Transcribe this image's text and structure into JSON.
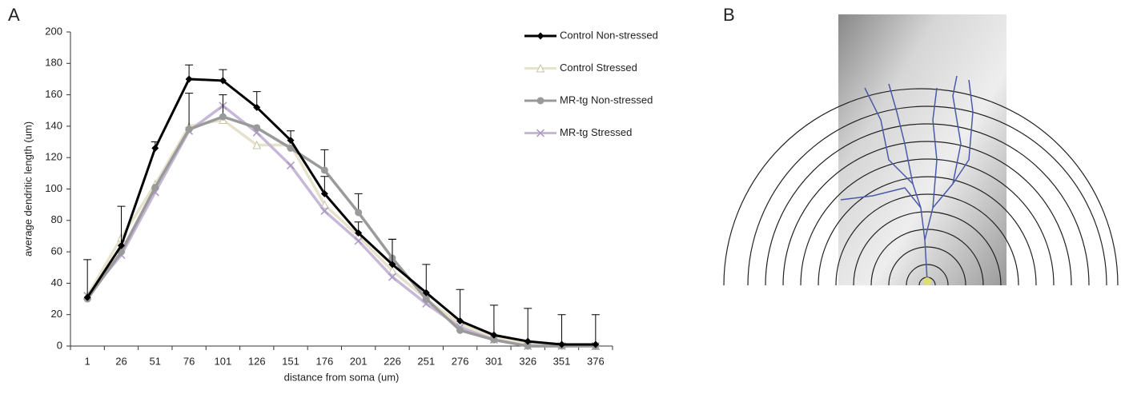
{
  "panels": [
    "A",
    "B"
  ],
  "chart_data": {
    "type": "line",
    "xlabel": "distance from soma (um)",
    "ylabel": "average dendritic length (um)",
    "categories": [
      "1",
      "26",
      "51",
      "76",
      "101",
      "126",
      "151",
      "176",
      "201",
      "226",
      "251",
      "276",
      "301",
      "326",
      "351",
      "376"
    ],
    "ylim": [
      0,
      200
    ],
    "yticks": [
      0,
      20,
      40,
      60,
      80,
      100,
      120,
      140,
      160,
      180,
      200
    ],
    "legend": "right",
    "series": [
      {
        "name": "Control Non-stressed",
        "color": "#000000",
        "marker": "diamond",
        "values": [
          31,
          64,
          126,
          170,
          169,
          152,
          131,
          97,
          72,
          52,
          34,
          16,
          7,
          3,
          1,
          1
        ],
        "errors": [
          24,
          25,
          4,
          9,
          7,
          10,
          6,
          11,
          7,
          16,
          18,
          20,
          19,
          21,
          19,
          19
        ]
      },
      {
        "name": "Control Stressed",
        "color": "#e6e2cc",
        "marker": "triangle",
        "values": [
          32,
          69,
          103,
          140,
          144,
          128,
          128,
          90,
          70,
          48,
          30,
          14,
          6,
          2,
          1,
          0
        ]
      },
      {
        "name": "MR-tg Non-stressed",
        "color": "#9a9a9a",
        "marker": "circle",
        "values": [
          30,
          60,
          101,
          138,
          146,
          139,
          126,
          112,
          85,
          56,
          30,
          10,
          4,
          0,
          0,
          0
        ],
        "errors": [
          0,
          0,
          0,
          23,
          14,
          0,
          0,
          13,
          12,
          12,
          0,
          0,
          0,
          0,
          0,
          0
        ]
      },
      {
        "name": "MR-tg Stressed",
        "color": "#c6b8d6",
        "marker": "x",
        "values": [
          32,
          58,
          98,
          137,
          153,
          136,
          115,
          86,
          67,
          44,
          27,
          12,
          4,
          0,
          0,
          0
        ]
      }
    ]
  }
}
